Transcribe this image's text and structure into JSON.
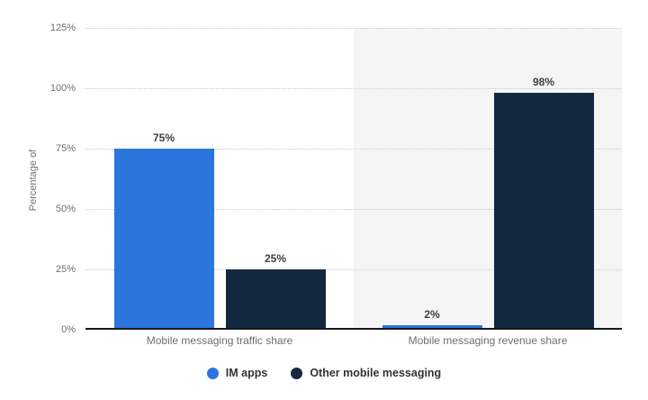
{
  "chart_data": {
    "type": "bar",
    "title": "",
    "ylabel": "Percentage of",
    "xlabel": "",
    "categories": [
      "Mobile messaging traffic share",
      "Mobile messaging revenue share"
    ],
    "series": [
      {
        "name": "IM apps",
        "color": "#2b76dd",
        "values": [
          75,
          2
        ],
        "labels": [
          "75%",
          "2%"
        ]
      },
      {
        "name": "Other mobile messaging",
        "color": "#132940",
        "values": [
          25,
          98
        ],
        "labels": [
          "25%",
          "98%"
        ]
      }
    ],
    "yticks": [
      {
        "value": 0,
        "label": "0%"
      },
      {
        "value": 25,
        "label": "25%"
      },
      {
        "value": 50,
        "label": "50%"
      },
      {
        "value": 75,
        "label": "75%"
      },
      {
        "value": 100,
        "label": "100%"
      },
      {
        "value": 125,
        "label": "125%"
      }
    ],
    "ylim": [
      0,
      125
    ],
    "grid": "dotted",
    "legend_position": "bottom",
    "plot_band_colors": [
      "#ffffff",
      "#f5f5f5"
    ]
  },
  "colors": {
    "background": "#ffffff",
    "gridline": "#c9c9c9",
    "axis_line": "#1a1a1a",
    "tick_text": "#6f6f6f",
    "value_label_text": "#3f3f3f",
    "legend_text": "#333333"
  }
}
